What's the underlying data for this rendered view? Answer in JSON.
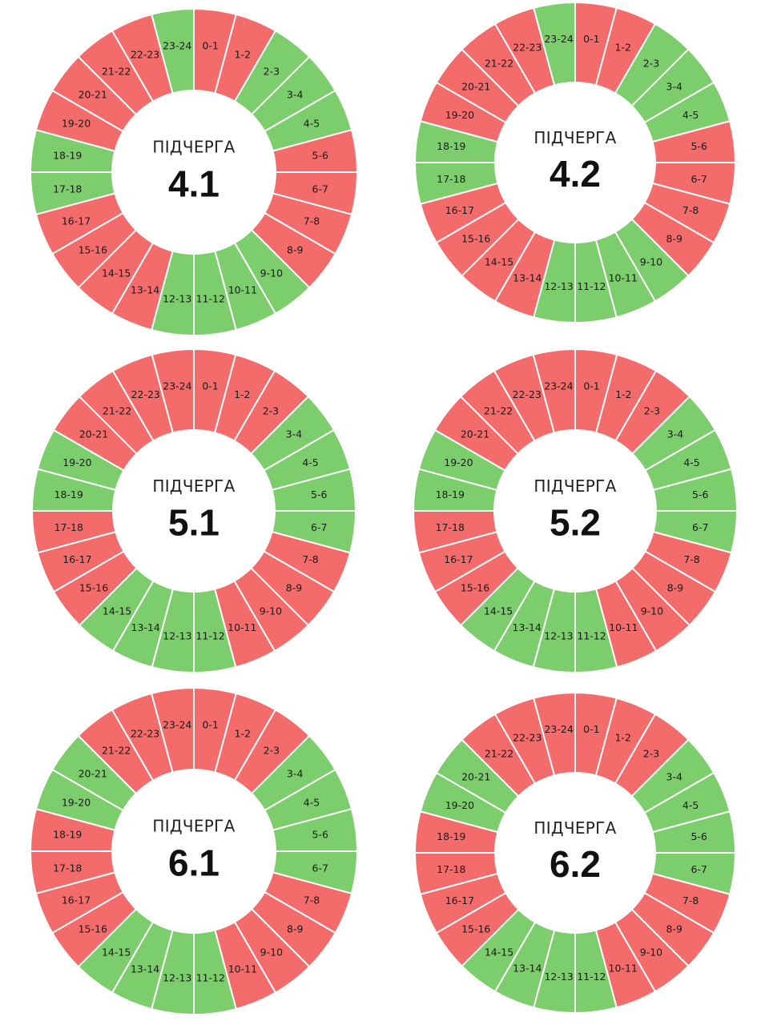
{
  "colors": {
    "on": "#f46b6b",
    "off": "#7ccd6c",
    "separator": "#ffffff"
  },
  "caption": "ПІДЧЕРГА",
  "hours": [
    "0-1",
    "1-2",
    "2-3",
    "3-4",
    "4-5",
    "5-6",
    "6-7",
    "7-8",
    "8-9",
    "9-10",
    "10-11",
    "11-12",
    "12-13",
    "13-14",
    "14-15",
    "15-16",
    "16-17",
    "17-18",
    "18-19",
    "19-20",
    "20-21",
    "21-22",
    "22-23",
    "23-24"
  ],
  "legend_states": {
    "on": "red",
    "off": "green"
  },
  "groups": [
    {
      "id": "4.1",
      "schedule": [
        "on",
        "on",
        "off",
        "off",
        "off",
        "on",
        "on",
        "on",
        "on",
        "off",
        "off",
        "off",
        "off",
        "on",
        "on",
        "on",
        "on",
        "off",
        "off",
        "on",
        "on",
        "on",
        "on",
        "off"
      ]
    },
    {
      "id": "4.2",
      "schedule": [
        "on",
        "on",
        "off",
        "off",
        "off",
        "on",
        "on",
        "on",
        "on",
        "off",
        "off",
        "off",
        "off",
        "on",
        "on",
        "on",
        "on",
        "off",
        "off",
        "on",
        "on",
        "on",
        "on",
        "off"
      ]
    },
    {
      "id": "5.1",
      "schedule": [
        "on",
        "on",
        "on",
        "off",
        "off",
        "off",
        "off",
        "on",
        "on",
        "on",
        "on",
        "off",
        "off",
        "off",
        "off",
        "on",
        "on",
        "on",
        "off",
        "off",
        "on",
        "on",
        "on",
        "on"
      ]
    },
    {
      "id": "5.2",
      "schedule": [
        "on",
        "on",
        "on",
        "off",
        "off",
        "off",
        "off",
        "on",
        "on",
        "on",
        "on",
        "off",
        "off",
        "off",
        "off",
        "on",
        "on",
        "on",
        "off",
        "off",
        "on",
        "on",
        "on",
        "on"
      ]
    },
    {
      "id": "6.1",
      "schedule": [
        "on",
        "on",
        "on",
        "off",
        "off",
        "off",
        "off",
        "on",
        "on",
        "on",
        "on",
        "off",
        "off",
        "off",
        "off",
        "on",
        "on",
        "on",
        "on",
        "off",
        "off",
        "on",
        "on",
        "on"
      ]
    },
    {
      "id": "6.2",
      "schedule": [
        "on",
        "on",
        "on",
        "off",
        "off",
        "off",
        "off",
        "on",
        "on",
        "on",
        "on",
        "off",
        "off",
        "off",
        "off",
        "on",
        "on",
        "on",
        "on",
        "off",
        "off",
        "on",
        "on",
        "on"
      ]
    }
  ]
}
